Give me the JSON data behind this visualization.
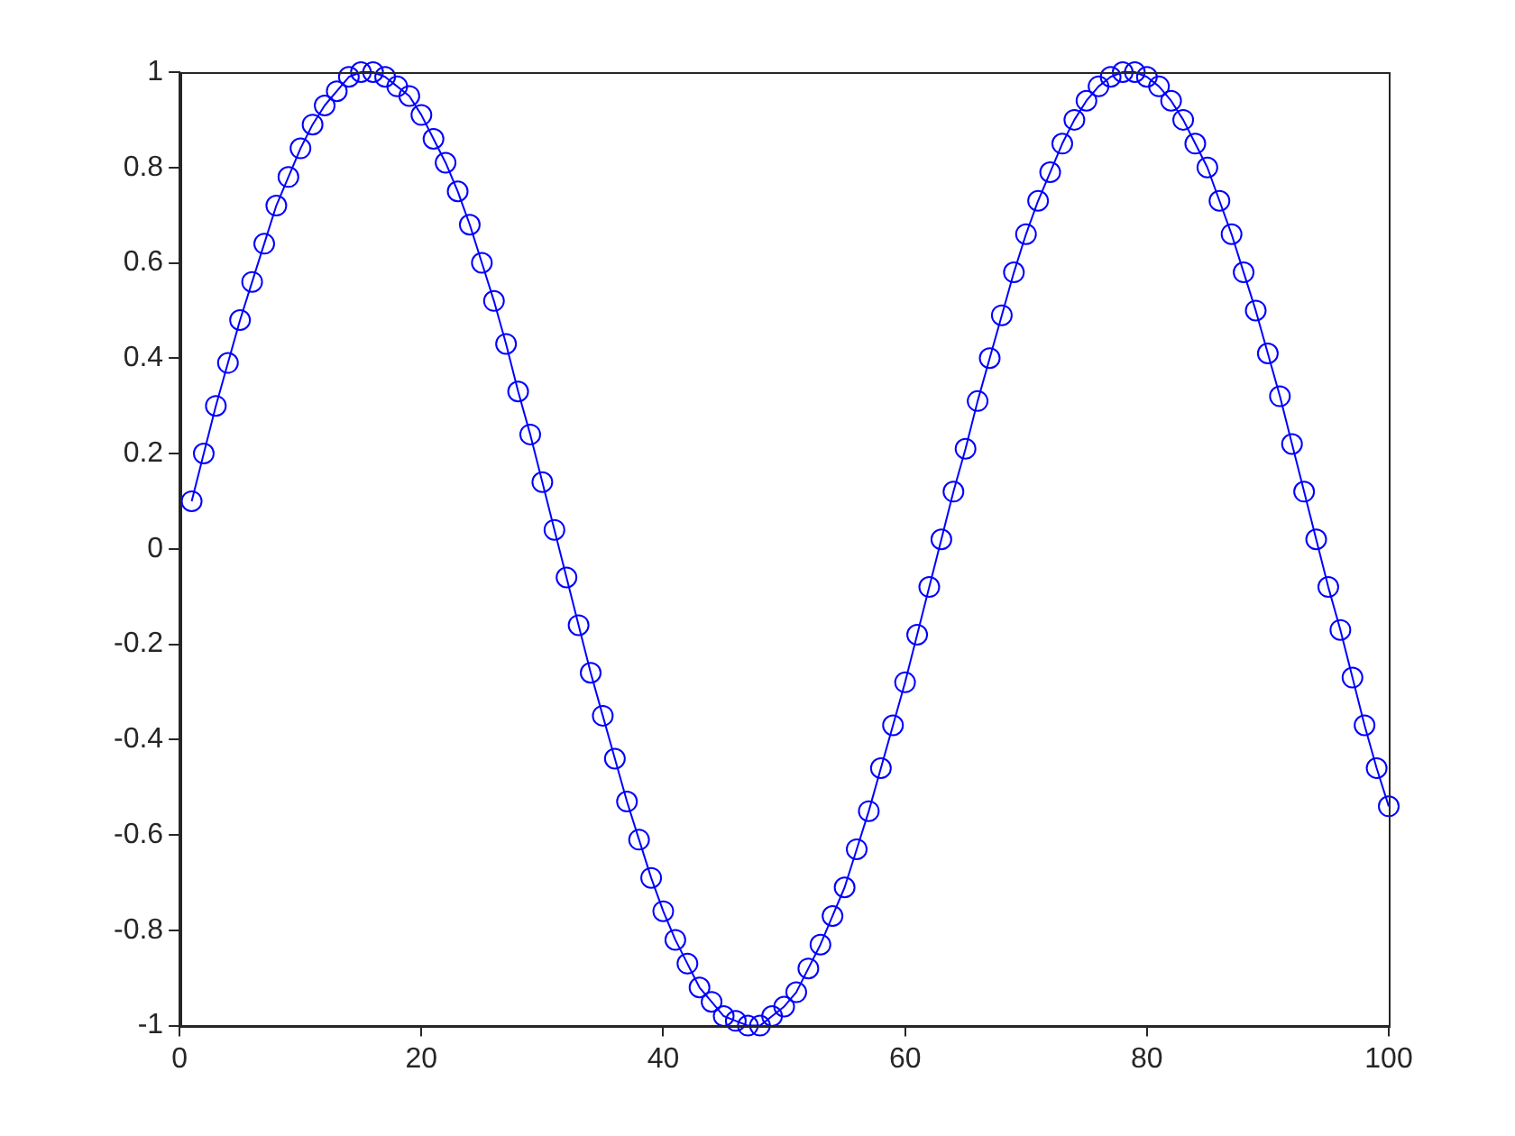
{
  "chart_data": {
    "type": "line",
    "marker": "circle",
    "line_style": "solid",
    "legend": false,
    "grid": false,
    "xlim": [
      0,
      100
    ],
    "xticks": [
      0,
      20,
      40,
      60,
      80,
      100
    ],
    "ylim": [
      -1,
      1
    ],
    "yticks": [
      -1,
      -0.8,
      -0.6,
      -0.4,
      -0.2,
      0,
      0.2,
      0.4,
      0.6,
      0.8,
      1
    ],
    "x": [
      1,
      2,
      3,
      4,
      5,
      6,
      7,
      8,
      9,
      10,
      11,
      12,
      13,
      14,
      15,
      16,
      17,
      18,
      19,
      20,
      21,
      22,
      23,
      24,
      25,
      26,
      27,
      28,
      29,
      30,
      31,
      32,
      33,
      34,
      35,
      36,
      37,
      38,
      39,
      40,
      41,
      42,
      43,
      44,
      45,
      46,
      47,
      48,
      49,
      50,
      51,
      52,
      53,
      54,
      55,
      56,
      57,
      58,
      59,
      60,
      61,
      62,
      63,
      64,
      65,
      66,
      67,
      68,
      69,
      70,
      71,
      72,
      73,
      74,
      75,
      76,
      77,
      78,
      79,
      80,
      81,
      82,
      83,
      84,
      85,
      86,
      87,
      88,
      89,
      90,
      91,
      92,
      93,
      94,
      95,
      96,
      97,
      98,
      99,
      100
    ],
    "series": [
      {
        "color": "#0000ff",
        "values": [
          0.1,
          0.2,
          0.3,
          0.39,
          0.48,
          0.56,
          0.64,
          0.72,
          0.78,
          0.84,
          0.89,
          0.93,
          0.96,
          0.99,
          1.0,
          1.0,
          0.99,
          0.97,
          0.95,
          0.91,
          0.86,
          0.81,
          0.75,
          0.68,
          0.6,
          0.52,
          0.43,
          0.33,
          0.24,
          0.14,
          0.04,
          -0.06,
          -0.16,
          -0.26,
          -0.35,
          -0.44,
          -0.53,
          -0.61,
          -0.69,
          -0.76,
          -0.82,
          -0.87,
          -0.92,
          -0.95,
          -0.98,
          -0.99,
          -1.0,
          -1.0,
          -0.98,
          -0.96,
          -0.93,
          -0.88,
          -0.83,
          -0.77,
          -0.71,
          -0.63,
          -0.55,
          -0.46,
          -0.37,
          -0.28,
          -0.18,
          -0.08,
          0.02,
          0.12,
          0.21,
          0.31,
          0.4,
          0.49,
          0.58,
          0.66,
          0.73,
          0.79,
          0.85,
          0.9,
          0.94,
          0.97,
          0.99,
          1.0,
          1.0,
          0.99,
          0.97,
          0.94,
          0.9,
          0.85,
          0.8,
          0.73,
          0.66,
          0.58,
          0.5,
          0.41,
          0.32,
          0.22,
          0.12,
          0.02,
          -0.08,
          -0.17,
          -0.27,
          -0.37,
          -0.46,
          -0.54
        ]
      }
    ]
  }
}
